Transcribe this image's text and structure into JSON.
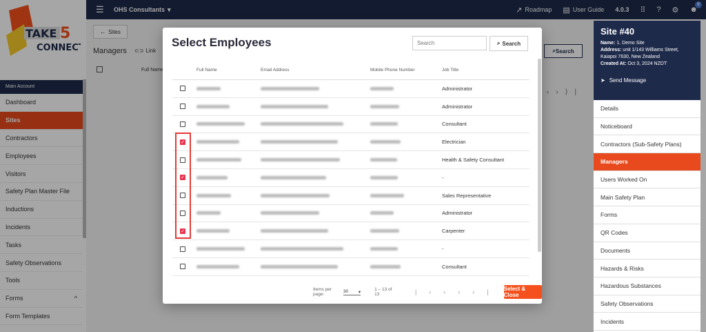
{
  "topbar": {
    "company": "OHS Consultants",
    "roadmap": "Roadmap",
    "user_guide": "User Guide",
    "version": "4.0.3",
    "notif_count": "0"
  },
  "logo": {
    "text1": "TAKE",
    "text2": "5",
    "text3": "CONNECT"
  },
  "sidebar": {
    "section": "Main Account",
    "items": [
      {
        "label": "Dashboard"
      },
      {
        "label": "Sites",
        "active": true
      },
      {
        "label": "Contractors"
      },
      {
        "label": "Employees"
      },
      {
        "label": "Visitors"
      },
      {
        "label": "Safety Plan Master File"
      },
      {
        "label": "Inductions"
      },
      {
        "label": "Incidents"
      },
      {
        "label": "Tasks"
      },
      {
        "label": "Safety Observations"
      },
      {
        "label": "Tools"
      },
      {
        "label": "Forms",
        "expand": "^"
      },
      {
        "label": "Form Templates"
      }
    ]
  },
  "main": {
    "back": "Sites",
    "title": "Managers",
    "link": "Link",
    "search": "Search",
    "col_fullname": "Full Name"
  },
  "site": {
    "title": "Site #40",
    "name_label": "Name:",
    "name": "1. Demo Site",
    "address_label": "Address:",
    "address": "unit 1/143 Williams Street, Kaiapoi 7630, New Zealand",
    "created_label": "Created At:",
    "created": "Oct 3, 2024 NZDT",
    "send": "Send Message"
  },
  "rmenu": [
    {
      "label": "Details"
    },
    {
      "label": "Noticeboard"
    },
    {
      "label": "Contractors (Sub-Safety Plans)"
    },
    {
      "label": "Managers",
      "active": true
    },
    {
      "label": "Users Worked On"
    },
    {
      "label": "Main Safety Plan"
    },
    {
      "label": "Forms"
    },
    {
      "label": "QR Codes"
    },
    {
      "label": "Documents"
    },
    {
      "label": "Hazards & Risks"
    },
    {
      "label": "Hazardous Substances"
    },
    {
      "label": "Safety Observations"
    },
    {
      "label": "Incidents"
    }
  ],
  "modal": {
    "title": "Select Employees",
    "search_placeholder": "Search",
    "search_btn": "Search",
    "columns": [
      "Full Name",
      "Email Address",
      "Mobile Phone Number",
      "Job Title"
    ],
    "rows": [
      {
        "checked": false,
        "job": "Administrator"
      },
      {
        "checked": false,
        "job": "Administrator"
      },
      {
        "checked": false,
        "job": "Consultant"
      },
      {
        "checked": true,
        "job": "Electrician"
      },
      {
        "checked": false,
        "job": "Health & Safety Consultant"
      },
      {
        "checked": true,
        "job": "-"
      },
      {
        "checked": false,
        "job": "Sales Representative"
      },
      {
        "checked": false,
        "job": "Administrator"
      },
      {
        "checked": true,
        "job": "Carpenter"
      },
      {
        "checked": false,
        "job": "-"
      },
      {
        "checked": false,
        "job": "Consultant"
      }
    ],
    "items_per_page_label": "Items per page:",
    "items_per_page": "30",
    "range": "1 – 13 of 13",
    "select_close": "Select & Close"
  }
}
